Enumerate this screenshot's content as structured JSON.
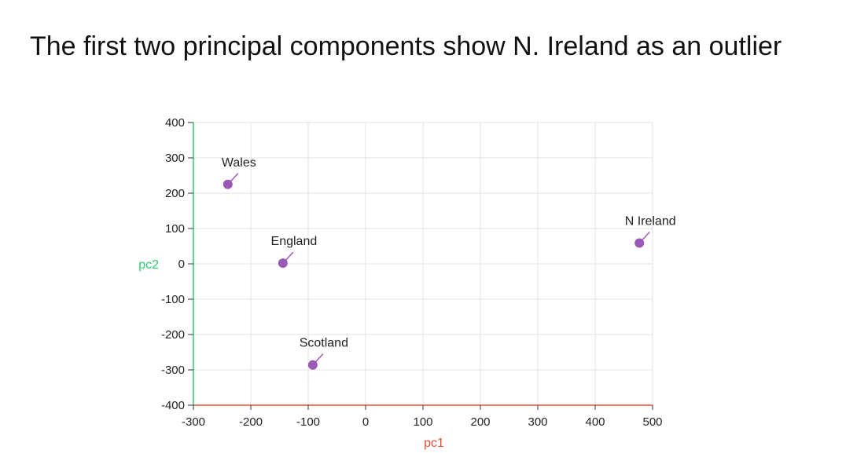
{
  "slide": {
    "title": "The first two principal components show N. Ireland as an outlier"
  },
  "chart_data": {
    "type": "scatter",
    "title": "",
    "xlabel": "pc1",
    "ylabel": "pc2",
    "xlim": [
      -300,
      500
    ],
    "ylim": [
      -400,
      400
    ],
    "xticks": [
      -300,
      -200,
      -100,
      0,
      100,
      200,
      300,
      400,
      500
    ],
    "yticks": [
      -400,
      -300,
      -200,
      -100,
      0,
      100,
      200,
      300,
      400
    ],
    "grid": true,
    "points": [
      {
        "label": "Wales",
        "x": -240,
        "y": 225
      },
      {
        "label": "England",
        "x": -144,
        "y": 2
      },
      {
        "label": "Scotland",
        "x": -92,
        "y": -286
      },
      {
        "label": "N Ireland",
        "x": 477,
        "y": 59
      }
    ],
    "colors": {
      "point": "#9b59b6",
      "x_axis": "#e74c3c",
      "y_axis": "#2ecc71",
      "grid": "#e3e3e3"
    }
  }
}
